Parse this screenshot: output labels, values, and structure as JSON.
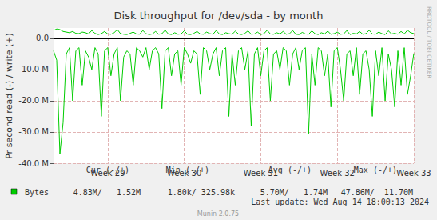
{
  "chart_data": {
    "type": "line",
    "title": "Disk throughput for /dev/sda - by month",
    "y_label": "Pr second read (-) / write (+)",
    "categories": [
      null,
      null,
      null,
      null,
      null,
      null,
      null,
      null,
      null,
      null,
      null,
      null,
      null,
      null,
      null,
      null,
      null,
      "Week 29",
      null,
      null,
      null,
      null,
      null,
      null,
      null,
      null,
      null,
      null,
      null,
      null,
      null,
      null,
      null,
      null,
      null,
      null,
      null,
      null,
      null,
      null,
      null,
      "Week 30",
      null,
      null,
      null,
      null,
      null,
      null,
      null,
      null,
      null,
      null,
      null,
      null,
      null,
      null,
      null,
      null,
      null,
      null,
      null,
      null,
      null,
      null,
      null,
      "Week 31",
      null,
      null,
      null,
      null,
      null,
      null,
      null,
      null,
      null,
      null,
      null,
      null,
      null,
      null,
      null,
      null,
      null,
      null,
      null,
      null,
      null,
      null,
      null,
      "Week 32",
      null,
      null,
      null,
      null,
      null,
      null,
      null,
      null,
      null,
      null,
      null,
      null,
      null,
      null,
      null,
      null,
      null,
      null,
      null,
      null,
      null,
      null,
      null,
      "Week 33"
    ],
    "series": [
      {
        "name": "Bytes",
        "color": "#00cc00",
        "values": [
          -4,
          -7,
          -37,
          -27,
          -5,
          -3,
          -20,
          -4,
          -3,
          -15,
          -4,
          -6,
          -10,
          -3,
          -5,
          -25,
          -4,
          -3,
          -12,
          -5,
          -3,
          -20,
          -6,
          -4,
          -5,
          -15,
          -3,
          -4,
          -6,
          -3,
          -10,
          -4,
          -3,
          -5,
          -22.5,
          -4,
          -3,
          -12,
          -5,
          -4,
          -15,
          -3,
          -5,
          -8,
          -4,
          -5,
          -18,
          -3,
          -4,
          -10,
          -5,
          -3,
          -12,
          -4,
          -3,
          -25,
          -5,
          -15,
          -4,
          -3,
          -10,
          -4,
          -28,
          -5,
          -3,
          -12,
          -4,
          -3,
          -20,
          -5,
          -4,
          -10,
          -3,
          -4,
          -15,
          -5,
          -3,
          -10,
          -4,
          -3,
          -30.5,
          -5,
          -15,
          -3,
          -4,
          -12,
          -5,
          -22,
          -4,
          -3,
          -10,
          -20,
          -5,
          -4,
          -12,
          -3,
          -18,
          -5,
          -4,
          -10,
          -25,
          -4,
          -12,
          -3,
          -20,
          -5,
          -10,
          -22,
          -4,
          -15,
          -3,
          -18,
          -12,
          -4.83
        ]
      },
      {
        "name": "Bytes",
        "color": "#00cc00",
        "values": [
          2.5,
          3,
          2.8,
          2.2,
          2,
          1.8,
          2.2,
          1.6,
          1.5,
          2,
          1.8,
          1.4,
          2.5,
          1.6,
          1.2,
          1.5,
          2.2,
          1.4,
          1.3,
          1.8,
          2.8,
          1.5,
          1.3,
          1.2,
          1.6,
          2,
          1.4,
          1.3,
          2.5,
          1.5,
          1.2,
          1.4,
          2.2,
          1.3,
          1.5,
          2.6,
          1.4,
          1.2,
          1.8,
          1.3,
          1.4,
          2.4,
          1.3,
          1.2,
          1.6,
          2.2,
          1.4,
          1.3,
          2,
          1.5,
          1.3,
          2.5,
          1.4,
          1.2,
          1.8,
          1.5,
          1.3,
          2.3,
          1.4,
          1.2,
          1.6,
          2.4,
          1.3,
          1.4,
          2,
          1.2,
          1.5,
          2.6,
          1.4,
          1.3,
          1.8,
          1.4,
          2.2,
          1.3,
          1.5,
          2.5,
          1.3,
          1.2,
          1.9,
          1.4,
          1.3,
          2.4,
          1.5,
          1.2,
          1.8,
          1.4,
          2.3,
          1.3,
          1.5,
          2,
          1.3,
          1.4,
          2.5,
          1.2,
          1.6,
          1.4,
          2.2,
          1.3,
          1.5,
          2.6,
          1.4,
          1.3,
          2,
          1.5,
          1.2,
          2.4,
          1.4,
          1.6,
          1.3,
          2.2,
          1.4,
          2.6,
          1.8,
          1.52
        ]
      }
    ],
    "ylim": [
      -40,
      3.3
    ],
    "yticks": [
      {
        "value": -40,
        "label": "-40.0 M"
      },
      {
        "value": -30,
        "label": "-30.0 M"
      },
      {
        "value": -20,
        "label": "-20.0 M"
      },
      {
        "value": -10,
        "label": "-10.0 M"
      },
      {
        "value": 0,
        "label": "0.0"
      }
    ],
    "grid": true,
    "legend_table": {
      "headers": [
        "Cur (-/+)",
        "Min (-/+)",
        "Avg (-/+)",
        "Max (-/+)"
      ],
      "cells": [
        "4.83M/   1.52M",
        "1.80k/ 325.98k",
        "5.70M/   1.74M",
        "47.86M/  11.70M"
      ]
    },
    "side_text": "RRDTOOL / TOBI OETIKER",
    "last_update": "Last update: Wed Aug 14 18:00:13 2024",
    "footer": "Munin 2.0.75"
  }
}
